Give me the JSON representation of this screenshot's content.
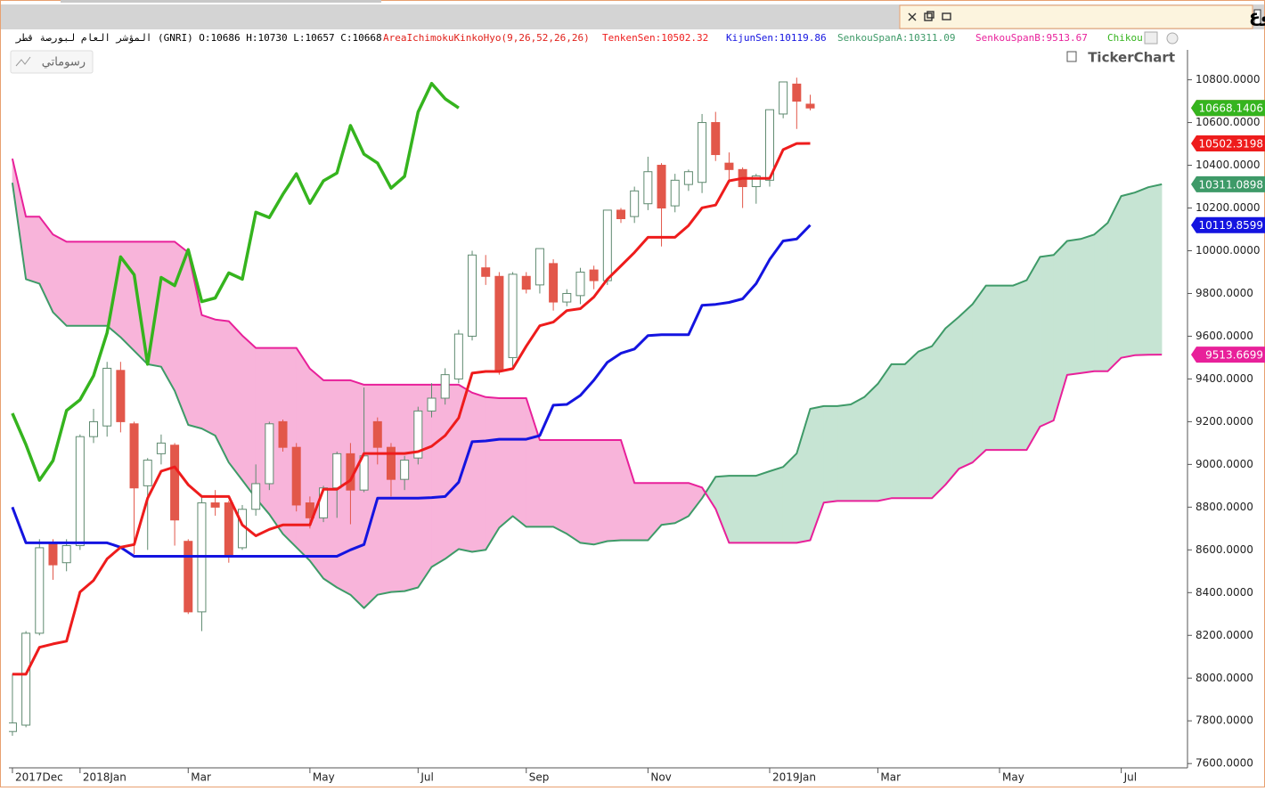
{
  "chart_data": {
    "type": "candlestick",
    "title": "المؤشر العام لبورصة قطر - أسبوع",
    "info": "المؤشر العام لبورصة قطر (GNRI) O:10686 H:10730 L:10657 C:10668",
    "indicator": "AreaIchimokuKinkoHyo(9,26,52,26,26)",
    "indicator_color": "#e0201a",
    "button": "رسوماتي",
    "watermark": "TickerChart",
    "xlim": [
      -0.26,
      86.9
    ],
    "xticks": [
      {
        "value": 0,
        "label": "2017Dec"
      },
      {
        "value": 5,
        "label": "2018Jan"
      },
      {
        "value": 13,
        "label": "Mar"
      },
      {
        "value": 22,
        "label": "May"
      },
      {
        "value": 30,
        "label": "Jul"
      },
      {
        "value": 38,
        "label": "Sep"
      },
      {
        "value": 47,
        "label": "Nov"
      },
      {
        "value": 56,
        "label": "2019Jan"
      },
      {
        "value": 64,
        "label": "Mar"
      },
      {
        "value": 73,
        "label": "May"
      },
      {
        "value": 82,
        "label": "Jul"
      }
    ],
    "ylim": [
      7580,
      10940
    ],
    "yticks": [
      {
        "value": 7600,
        "label": "7600.0000"
      },
      {
        "value": 7800,
        "label": "7800.0000"
      },
      {
        "value": 8000,
        "label": "8000.0000"
      },
      {
        "value": 8200,
        "label": "8200.0000"
      },
      {
        "value": 8400,
        "label": "8400.0000"
      },
      {
        "value": 8600,
        "label": "8600.0000"
      },
      {
        "value": 8800,
        "label": "8800.0000"
      },
      {
        "value": 9000,
        "label": "9000.0000"
      },
      {
        "value": 9200,
        "label": "9200.0000"
      },
      {
        "value": 9400,
        "label": "9400.0000"
      },
      {
        "value": 9600,
        "label": "9600.0000"
      },
      {
        "value": 9800,
        "label": "9800.0000"
      },
      {
        "value": 10000,
        "label": "10000.0000"
      },
      {
        "value": 10200,
        "label": "10200.0000"
      },
      {
        "value": 10400,
        "label": "10400.0000"
      },
      {
        "value": 10600,
        "label": "10600.0000"
      },
      {
        "value": 10800,
        "label": "10800.0000"
      }
    ],
    "candles": {
      "up_color": "#ffffff",
      "up_border": "#5f8a70",
      "down_color": "#e2574a",
      "x": [
        0,
        1,
        2,
        3,
        4,
        5,
        6,
        7,
        8,
        9,
        10,
        11,
        12,
        13,
        14,
        15,
        16,
        17,
        18,
        19,
        20,
        21,
        22,
        23,
        24,
        25,
        26,
        27,
        28,
        29,
        30,
        31,
        32,
        33,
        34,
        35,
        36,
        37,
        38,
        39,
        40,
        41,
        42,
        43,
        44,
        45,
        46,
        47,
        48,
        49,
        50,
        51,
        52,
        53,
        54,
        55,
        56,
        57,
        58,
        59
      ],
      "open": [
        7750,
        7780,
        8210,
        8630,
        8540,
        8620,
        9130,
        9180,
        9440,
        9190,
        8900,
        9050,
        9090,
        8640,
        8310,
        8820,
        8820,
        8610,
        8790,
        8910,
        9200,
        9080,
        8820,
        8750,
        8890,
        9050,
        8880,
        9200,
        9080,
        8930,
        9030,
        9250,
        9310,
        9400,
        9600,
        9920,
        9880,
        9500,
        9880,
        9840,
        9940,
        9760,
        9790,
        9910,
        9860,
        10190,
        10160,
        10220,
        10400,
        10210,
        10310,
        10320,
        10600,
        10410,
        10380,
        10300,
        10330,
        10640,
        10780,
        10686
      ],
      "high": [
        8020,
        8220,
        8650,
        8650,
        8650,
        9140,
        9260,
        9480,
        9480,
        9200,
        9030,
        9140,
        9100,
        8650,
        8850,
        8880,
        8830,
        8810,
        9000,
        9200,
        9210,
        9100,
        8850,
        8900,
        9060,
        9100,
        9360,
        9220,
        9100,
        9040,
        9270,
        9380,
        9450,
        9630,
        10000,
        9980,
        9900,
        9900,
        9900,
        10010,
        9960,
        9820,
        9920,
        9930,
        10190,
        10200,
        10300,
        10440,
        10410,
        10360,
        10380,
        10640,
        10650,
        10460,
        10390,
        10360,
        10660,
        10790,
        10810,
        10730
      ],
      "low": [
        7730,
        7770,
        8200,
        8460,
        8500,
        8600,
        9100,
        9130,
        9150,
        8580,
        8600,
        9000,
        8620,
        8300,
        8220,
        8760,
        8540,
        8600,
        8760,
        8880,
        9060,
        8780,
        8700,
        8730,
        8750,
        8720,
        8870,
        9000,
        8850,
        8880,
        9000,
        9220,
        9280,
        9380,
        9580,
        9840,
        9420,
        9450,
        9800,
        9800,
        9720,
        9740,
        9750,
        9820,
        9840,
        10130,
        10130,
        10190,
        10020,
        10180,
        10280,
        10270,
        10420,
        10320,
        10200,
        10220,
        10300,
        10620,
        10570,
        10657
      ],
      "close": [
        7790,
        8210,
        8610,
        8530,
        8620,
        9130,
        9200,
        9450,
        9200,
        8890,
        9020,
        9100,
        8740,
        8310,
        8820,
        8800,
        8570,
        8790,
        8910,
        9190,
        9080,
        8810,
        8750,
        8890,
        9050,
        8880,
        9040,
        9080,
        8930,
        9020,
        9250,
        9310,
        9420,
        9610,
        9980,
        9880,
        9440,
        9890,
        9820,
        10010,
        9760,
        9800,
        9900,
        9860,
        10190,
        10150,
        10280,
        10370,
        10200,
        10330,
        10370,
        10600,
        10450,
        10380,
        10300,
        10350,
        10660,
        10790,
        10700,
        10668.1406
      ]
    },
    "lines": {
      "x": [
        0,
        1,
        2,
        3,
        4,
        5,
        6,
        7,
        8,
        9,
        10,
        11,
        12,
        13,
        14,
        15,
        16,
        17,
        18,
        19,
        20,
        21,
        22,
        23,
        24,
        25,
        26,
        27,
        28,
        29,
        30,
        31,
        32,
        33,
        34,
        35,
        36,
        37,
        38,
        39,
        40,
        41,
        42,
        43,
        44,
        45,
        46,
        47,
        48,
        49,
        50,
        51,
        52,
        53,
        54,
        55,
        56,
        57,
        58,
        59,
        60,
        61,
        62,
        63,
        64,
        65,
        66,
        67,
        68,
        69,
        70,
        71,
        72,
        73,
        74,
        75,
        76,
        77,
        78,
        79,
        80,
        81,
        82,
        83,
        84,
        85
      ],
      "cloud_colors": {
        "up": "#c6e4d3",
        "down": "#f8b4da"
      },
      "series": [
        {
          "name": "TenkenSen:10502.32",
          "color": "#ee1c1c",
          "values": [
            8018,
            8018,
            8144,
            8160,
            8173,
            8403,
            8457,
            8558,
            8612,
            8625,
            8842,
            8968,
            8988,
            8905,
            8850,
            8850,
            8850,
            8717,
            8666,
            8696,
            8717,
            8717,
            8717,
            8884,
            8884,
            8926,
            9051,
            9051,
            9051,
            9051,
            9060,
            9085,
            9135,
            9218,
            9427,
            9435,
            9435,
            9448,
            9553,
            9649,
            9666,
            9720,
            9729,
            9783,
            9867,
            9929,
            9992,
            10063,
            10063,
            10063,
            10118,
            10201,
            10214,
            10327,
            10339,
            10339,
            10339,
            10473,
            10502,
            10502.3198,
            null,
            null,
            null,
            null,
            null,
            null,
            null,
            null,
            null,
            null,
            null,
            null,
            null,
            null,
            null,
            null,
            null,
            null,
            null,
            null,
            null,
            null,
            null,
            null,
            null,
            null
          ]
        },
        {
          "name": "KijunSen:10119.86",
          "color": "#1414e0",
          "values": [
            8800,
            8633,
            8633,
            8633,
            8633,
            8633,
            8633,
            8633,
            8612,
            8570,
            8570,
            8570,
            8570,
            8570,
            8570,
            8570,
            8570,
            8570,
            8570,
            8570,
            8570,
            8570,
            8570,
            8570,
            8570,
            8600,
            8625,
            8842,
            8842,
            8842,
            8842,
            8845,
            8850,
            8917,
            9106,
            9110,
            9118,
            9118,
            9118,
            9135,
            9277,
            9281,
            9323,
            9394,
            9478,
            9520,
            9540,
            9603,
            9607,
            9607,
            9607,
            9745,
            9749,
            9758,
            9775,
            9846,
            9959,
            10046,
            10055,
            10119.8599,
            null,
            null,
            null,
            null,
            null,
            null,
            null,
            null,
            null,
            null,
            null,
            null,
            null,
            null,
            null,
            null,
            null,
            null,
            null,
            null,
            null,
            null,
            null,
            null,
            null,
            null
          ]
        },
        {
          "name": "Chikou",
          "color": "#35b41e",
          "values": [
            9239,
            9093,
            8926,
            9018,
            9252,
            9302,
            9415,
            9616,
            9971,
            9888,
            9469,
            9875,
            9837,
            10005,
            9762,
            9779,
            9896,
            9867,
            10180,
            10155,
            10264,
            10360,
            10222,
            10327,
            10364,
            10586,
            10452,
            10410,
            10293,
            10348,
            10649,
            10783,
            10711,
            10668.1406,
            null,
            null,
            null,
            null,
            null,
            null,
            null,
            null,
            null,
            null,
            null,
            null,
            null,
            null,
            null,
            null,
            null,
            null,
            null,
            null,
            null,
            null,
            null,
            null,
            null,
            null,
            null,
            null,
            null,
            null,
            null,
            null,
            null,
            null,
            null,
            null,
            null,
            null,
            null,
            null,
            null,
            null,
            null,
            null,
            null,
            null,
            null,
            null,
            null,
            null,
            null,
            null
          ]
        },
        {
          "name": "SenkouSpanA:10311.09",
          "color": "#3e9a68",
          "values": [
            10318,
            9867,
            9846,
            9712,
            9649,
            9649,
            9649,
            9649,
            9595,
            9532,
            9469,
            9457,
            9344,
            9185,
            9168,
            9135,
            9009,
            8926,
            8842,
            8767,
            8675,
            8612,
            8549,
            8466,
            8424,
            8390,
            8328,
            8390,
            8403,
            8407,
            8424,
            8520,
            8558,
            8604,
            8591,
            8600,
            8704,
            8758,
            8708,
            8708,
            8708,
            8675,
            8633,
            8625,
            8641,
            8645,
            8645,
            8645,
            8717,
            8725,
            8758,
            8842,
            8942,
            8947,
            8947,
            8947,
            8968,
            8988,
            9051,
            9260,
            9273,
            9273,
            9281,
            9315,
            9377,
            9469,
            9469,
            9528,
            9553,
            9637,
            9691,
            9750,
            9837,
            9837,
            9837,
            9862,
            9971,
            9980,
            10046,
            10055,
            10076,
            10130,
            10256,
            10272,
            10297,
            10311.0898
          ]
        },
        {
          "name": "SenkouSpanB:9513.67",
          "color": "#e8209a",
          "values": [
            10431,
            10159,
            10159,
            10076,
            10042,
            10042,
            10042,
            10042,
            10042,
            10042,
            10042,
            10042,
            10042,
            9992,
            9699,
            9678,
            9670,
            9603,
            9545,
            9545,
            9545,
            9545,
            9448,
            9394,
            9394,
            9394,
            9373,
            9373,
            9373,
            9373,
            9373,
            9373,
            9373,
            9373,
            9336,
            9315,
            9310,
            9310,
            9310,
            9114,
            9114,
            9114,
            9114,
            9114,
            9114,
            9114,
            8913,
            8913,
            8913,
            8913,
            8913,
            8892,
            8792,
            8633,
            8633,
            8633,
            8633,
            8633,
            8633,
            8645,
            8821,
            8829,
            8829,
            8829,
            8829,
            8842,
            8842,
            8842,
            8842,
            8905,
            8980,
            9009,
            9068,
            9068,
            9068,
            9068,
            9177,
            9206,
            9419,
            9427,
            9436,
            9436,
            9499,
            9511,
            9513,
            9513.6699
          ]
        }
      ]
    }
  }
}
